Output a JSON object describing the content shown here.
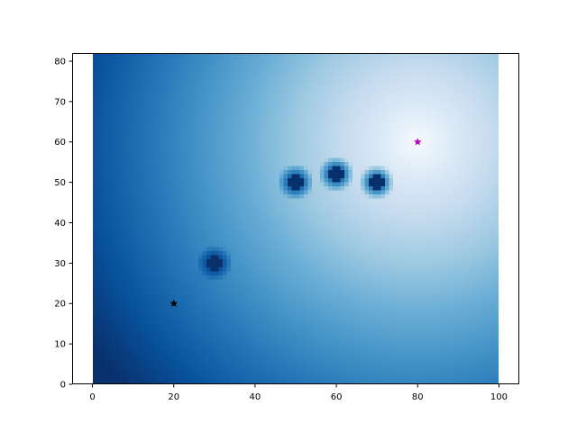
{
  "chart_data": {
    "type": "heatmap",
    "title": "",
    "xlabel": "",
    "ylabel": "",
    "colormap": "Blues",
    "xlim": [
      -5,
      105
    ],
    "ylim": [
      0,
      82
    ],
    "image_extent": {
      "x": [
        0,
        100
      ],
      "y": [
        0,
        82
      ]
    },
    "grid": false,
    "xticks": [
      "0",
      "20",
      "40",
      "60",
      "80",
      "100"
    ],
    "yticks": [
      "0",
      "10",
      "20",
      "30",
      "40",
      "50",
      "60",
      "70",
      "80"
    ],
    "field": {
      "description_source": "lighter near goal, darker with distance",
      "center": [
        80,
        60
      ]
    },
    "obstacles": [
      {
        "x": 30,
        "y": 30
      },
      {
        "x": 50,
        "y": 50
      },
      {
        "x": 60,
        "y": 52
      },
      {
        "x": 70,
        "y": 50
      }
    ],
    "markers": [
      {
        "x": 20,
        "y": 20,
        "marker": "star",
        "color": "#000000"
      },
      {
        "x": 80,
        "y": 60,
        "marker": "star",
        "color": "#bf00bf"
      }
    ]
  }
}
